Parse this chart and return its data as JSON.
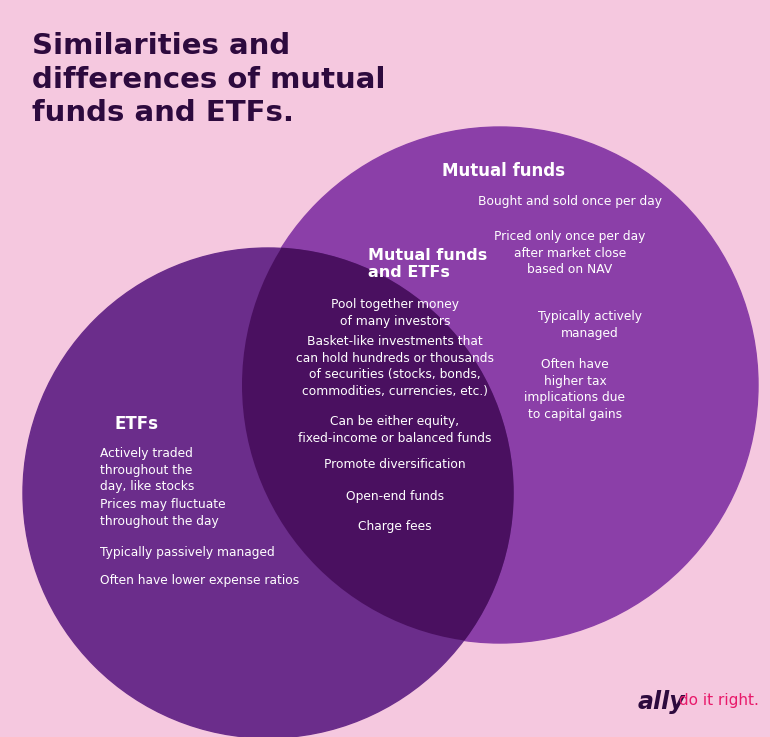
{
  "title": "Similarities and\ndifferences of mutual\nfunds and ETFs.",
  "title_color": "#2d0a3e",
  "bg_color": "#f5c8df",
  "etf_circle_color": "#6b2d8b",
  "mutual_circle_color": "#8b3fa8",
  "overlap_color": "#4a1060",
  "etf_label": "ETFs",
  "mutual_label": "Mutual funds",
  "overlap_label": "Mutual funds\nand ETFs",
  "etf_items": [
    "Actively traded\nthroughout the\nday, like stocks",
    "Prices may fluctuate\nthroughout the day",
    "Typically passively managed",
    "Often have lower expense ratios"
  ],
  "mutual_items": [
    "Bought and sold once per day",
    "Priced only once per day\nafter market close\nbased on NAV",
    "Typically actively\nmanaged",
    "Often have\nhigher tax\nimplications due\nto capital gains"
  ],
  "overlap_items": [
    "Pool together money\nof many investors",
    "Basket-like investments that\ncan hold hundreds or thousands\nof securities (stocks, bonds,\ncommodities, currencies, etc.)",
    "Can be either equity,\nfixed-income or balanced funds",
    "Promote diversification",
    "Open-end funds",
    "Charge fees"
  ],
  "ally_text": "ally",
  "ally_tagline": " do it right.",
  "ally_color": "#2d0a3e",
  "ally_pink": "#e8196a"
}
